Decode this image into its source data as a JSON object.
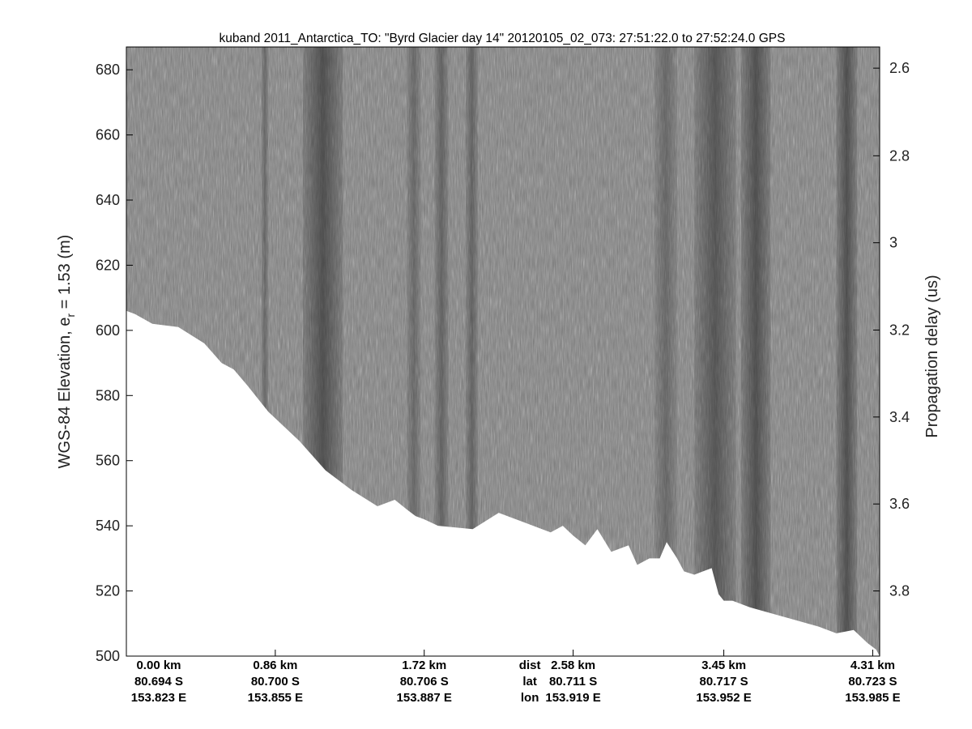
{
  "chart_data": {
    "type": "heatmap",
    "title": "kuband 2011_Antarctica_TO: \"Byrd Glacier day 14\"  20120105_02_073: 27:51:22.0 to 27:52:24.0 GPS",
    "ylabel_main": "WGS-84 Elevation, e",
    "ylabel_sub": "r",
    "ylabel_tail": " = 1.53 (m)",
    "y2label": "Propagation delay (us)",
    "ylim": [
      500,
      687
    ],
    "yticks": [
      500,
      520,
      540,
      560,
      580,
      600,
      620,
      640,
      660,
      680
    ],
    "y2ticks": [
      {
        "label": "2.6",
        "elevation": 680.5
      },
      {
        "label": "2.8",
        "elevation": 653.6
      },
      {
        "label": "3",
        "elevation": 626.9
      },
      {
        "label": "3.2",
        "elevation": 600.1
      },
      {
        "label": "3.4",
        "elevation": 573.4
      },
      {
        "label": "3.6",
        "elevation": 546.7
      },
      {
        "label": "3.8",
        "elevation": 520.0
      }
    ],
    "xlim": [
      0,
      4.35
    ],
    "x_ticks": [
      {
        "dist_km": 0.0,
        "dist": "0.00 km",
        "lat": "80.694 S",
        "lon": "153.823 E"
      },
      {
        "dist_km": 0.86,
        "dist": "0.86 km",
        "lat": "80.700 S",
        "lon": "153.855 E"
      },
      {
        "dist_km": 1.72,
        "dist": "1.72 km",
        "lat": "80.706 S",
        "lon": "153.887 E"
      },
      {
        "dist_km": 2.58,
        "dist": "2.58 km",
        "lat": "80.711 S",
        "lon": "153.919 E"
      },
      {
        "dist_km": 3.45,
        "dist": "3.45 km",
        "lat": "80.717 S",
        "lon": "153.952 E"
      },
      {
        "dist_km": 4.31,
        "dist": "4.31 km",
        "lat": "80.723 S",
        "lon": "153.985 E"
      }
    ],
    "row_labels": {
      "dist": "dist",
      "lat": "lat",
      "lon": "lon",
      "dist_km": 2.33
    },
    "surface_profile": {
      "x_km": [
        0.0,
        0.05,
        0.15,
        0.3,
        0.45,
        0.55,
        0.62,
        0.7,
        0.82,
        1.0,
        1.15,
        1.3,
        1.45,
        1.55,
        1.62,
        1.67,
        1.72,
        1.8,
        2.0,
        2.15,
        2.3,
        2.4,
        2.45,
        2.52,
        2.58,
        2.65,
        2.72,
        2.8,
        2.9,
        2.95,
        3.02,
        3.08,
        3.12,
        3.18,
        3.22,
        3.28,
        3.33,
        3.38,
        3.42,
        3.45,
        3.5,
        3.6,
        3.8,
        4.0,
        4.1,
        4.2,
        4.28,
        4.33,
        4.35
      ],
      "elevation": [
        606,
        605,
        602,
        601,
        596,
        590,
        588,
        583,
        575,
        566,
        557,
        551,
        546,
        548,
        545,
        543,
        542,
        540,
        539,
        544,
        541,
        539,
        538,
        540,
        537,
        534,
        539,
        532,
        534,
        528,
        530,
        530,
        535,
        530,
        526,
        525,
        526,
        527,
        519,
        517,
        517,
        515,
        512,
        509,
        507,
        508,
        504,
        502,
        500
      ],
      "mask_color": "#ffffff"
    },
    "radar_bands": [
      {
        "x_km": [
          0.78,
          0.82
        ],
        "intensity": 0.6
      },
      {
        "x_km": [
          1.02,
          1.25
        ],
        "intensity": 1.0
      },
      {
        "x_km": [
          1.62,
          1.7
        ],
        "intensity": 0.6
      },
      {
        "x_km": [
          1.78,
          1.86
        ],
        "intensity": 0.7
      },
      {
        "x_km": [
          1.96,
          2.03
        ],
        "intensity": 0.7
      },
      {
        "x_km": [
          3.05,
          3.18
        ],
        "intensity": 0.6
      },
      {
        "x_km": [
          3.28,
          3.52
        ],
        "intensity": 0.9
      },
      {
        "x_km": [
          3.55,
          3.72
        ],
        "intensity": 1.0
      },
      {
        "x_km": [
          4.1,
          4.22
        ],
        "intensity": 1.0
      }
    ],
    "colors": {
      "background_noise": "#7a7a7a",
      "dark_band": "#2e2e2e",
      "axis": "#000000"
    }
  }
}
